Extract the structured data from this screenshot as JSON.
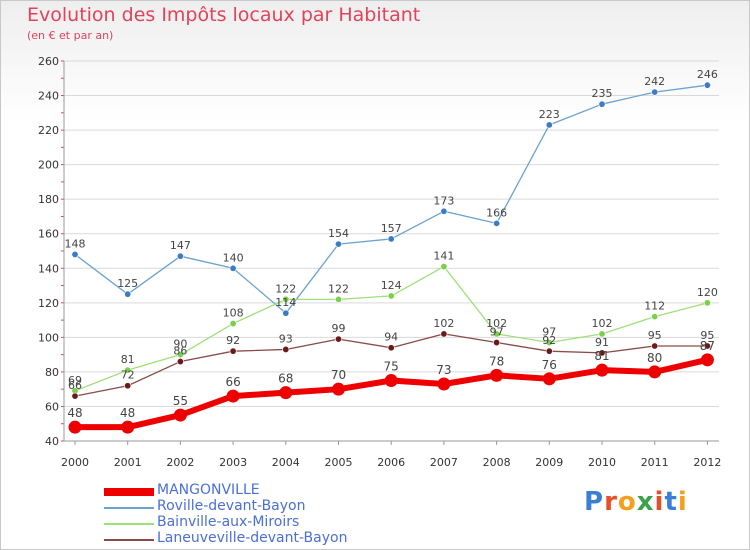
{
  "title": "Evolution des Impôts locaux par Habitant",
  "subtitle": "(en € et par an)",
  "logo": {
    "text": "Proxiti",
    "colors": [
      "#3a7fd5",
      "#e94e2a",
      "#f3a01c",
      "#3aa24a",
      "#e94e2a",
      "#3a7fd5",
      "#f3a01c"
    ]
  },
  "chart_data": {
    "type": "line",
    "title": "Evolution des Impôts locaux par Habitant",
    "subtitle": "(en € et par an)",
    "xlabel": "",
    "ylabel": "",
    "x": [
      "2000",
      "2001",
      "2002",
      "2003",
      "2004",
      "2005",
      "2006",
      "2007",
      "2008",
      "2009",
      "2010",
      "2011",
      "2012"
    ],
    "ylim": [
      40,
      260
    ],
    "yticks": [
      40,
      60,
      80,
      100,
      120,
      140,
      160,
      180,
      200,
      220,
      240,
      260
    ],
    "grid": true,
    "legend_position": "bottom-left",
    "series": [
      {
        "name": "Roville-devant-Bayon",
        "color": "#6aa2d0",
        "marker": "#3b7dc4",
        "values": [
          148,
          125,
          147,
          140,
          114,
          154,
          157,
          173,
          166,
          223,
          235,
          242,
          246
        ]
      },
      {
        "name": "Bainville-aux-Miroirs",
        "color": "#9ee07a",
        "marker": "#7ad04a",
        "values": [
          69,
          81,
          90,
          108,
          122,
          122,
          124,
          141,
          102,
          97,
          102,
          112,
          120
        ]
      },
      {
        "name": "Laneuveville-devant-Bayon",
        "color": "#8a4a4a",
        "marker": "#6b1a1a",
        "values": [
          66,
          72,
          86,
          92,
          93,
          99,
          94,
          102,
          97,
          92,
          91,
          95,
          95
        ]
      },
      {
        "name": "MANGONVILLE",
        "color": "#ee0000",
        "marker": "#ee0000",
        "values": [
          48,
          48,
          55,
          66,
          68,
          70,
          75,
          73,
          78,
          76,
          81,
          80,
          87
        ]
      }
    ],
    "legend_order": [
      "MANGONVILLE",
      "Roville-devant-Bayon",
      "Bainville-aux-Miroirs",
      "Laneuveville-devant-Bayon"
    ]
  }
}
